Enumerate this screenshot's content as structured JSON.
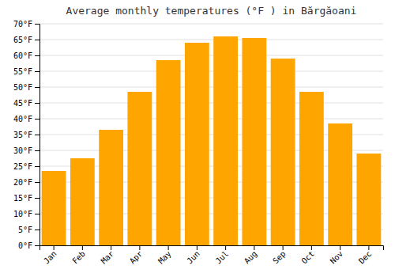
{
  "chart_data": {
    "type": "bar",
    "title": "Average monthly temperatures (°F ) in Bărgăoani",
    "categories": [
      "Jan",
      "Feb",
      "Mar",
      "Apr",
      "May",
      "Jun",
      "Jul",
      "Aug",
      "Sep",
      "Oct",
      "Nov",
      "Dec"
    ],
    "values": [
      23.5,
      27.5,
      36.5,
      48.5,
      58.5,
      64.0,
      66.0,
      65.5,
      59.0,
      48.5,
      38.5,
      29.0
    ],
    "color": "#FFA500",
    "ylim": [
      0,
      70
    ],
    "yticks": [
      {
        "value": 0,
        "label": "0°F"
      },
      {
        "value": 5,
        "label": "5°F"
      },
      {
        "value": 10,
        "label": "10°F"
      },
      {
        "value": 15,
        "label": "15°F"
      },
      {
        "value": 20,
        "label": "20°F"
      },
      {
        "value": 25,
        "label": "25°F"
      },
      {
        "value": 30,
        "label": "30°F"
      },
      {
        "value": 35,
        "label": "35°F"
      },
      {
        "value": 40,
        "label": "40°F"
      },
      {
        "value": 45,
        "label": "45°F"
      },
      {
        "value": 50,
        "label": "50°F"
      },
      {
        "value": 55,
        "label": "55°F"
      },
      {
        "value": 60,
        "label": "60°F"
      },
      {
        "value": 65,
        "label": "65°F"
      },
      {
        "value": 70,
        "label": "70°F"
      }
    ],
    "grid": true
  }
}
